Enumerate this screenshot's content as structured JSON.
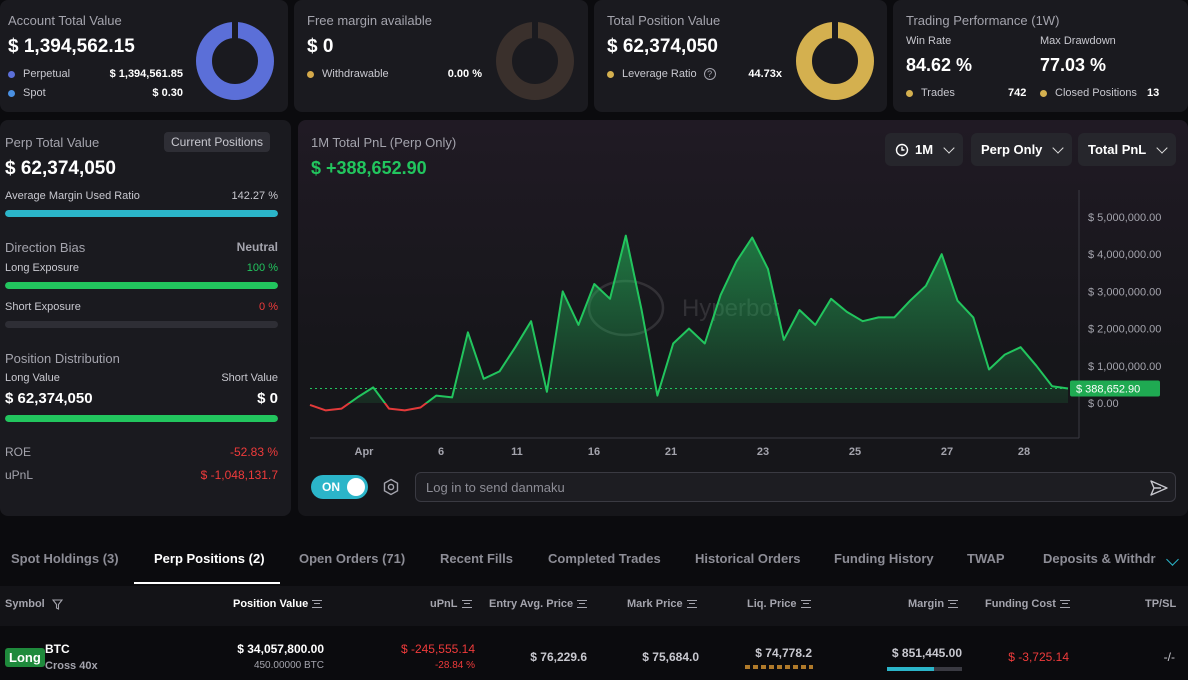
{
  "account": {
    "title": "Account Total Value",
    "value": "$ 1,394,562.15",
    "perpetual_label": "Perpetual",
    "perpetual_value": "$ 1,394,561.85",
    "spot_label": "Spot",
    "spot_value": "$ 0.30",
    "perpetual_color": "#5b6fd8",
    "spot_color": "#4a90e2"
  },
  "free_margin": {
    "title": "Free margin available",
    "value": "$ 0",
    "withdrawable_label": "Withdrawable",
    "withdrawable_value": "0.00 %",
    "accent": "#d4a94a"
  },
  "position": {
    "title": "Total Position Value",
    "value": "$ 62,374,050",
    "leverage_label": "Leverage Ratio",
    "leverage_value": "44.73x",
    "accent": "#d4b04f"
  },
  "performance": {
    "title": "Trading Performance (1W)",
    "win_rate_label": "Win Rate",
    "win_rate": "84.62 %",
    "max_drawdown_label": "Max Drawdown",
    "max_drawdown": "77.03 %",
    "trades_label": "Trades",
    "trades": "742",
    "closed_label": "Closed Positions",
    "closed": "13"
  },
  "perp": {
    "title": "Perp Total Value",
    "current_positions_btn": "Current Positions",
    "value": "$ 62,374,050",
    "margin_ratio_label": "Average Margin Used Ratio",
    "margin_ratio": "142.27 %",
    "margin_ratio_fill": 1.0,
    "direction_label": "Direction Bias",
    "direction_value": "Neutral",
    "long_exposure_label": "Long Exposure",
    "long_exposure": "100 %",
    "long_exposure_fill": 1.0,
    "short_exposure_label": "Short Exposure",
    "short_exposure": "0 %",
    "short_exposure_fill": 0.0,
    "distribution_label": "Position Distribution",
    "long_value_label": "Long Value",
    "short_value_label": "Short Value",
    "long_value": "$ 62,374,050",
    "short_value": "$ 0",
    "distribution_fill": 1.0,
    "roe_label": "ROE",
    "roe": "-52.83 %",
    "upnl_label": "uPnL",
    "upnl": "$ -1,048,131.7"
  },
  "pnl_chart": {
    "title": "1M Total PnL (Perp Only)",
    "value": "$ +388,652.90",
    "range_btn": "1M",
    "scope_btn": "Perp Only",
    "metric_btn": "Total PnL",
    "watermark": "Hyperbot",
    "toggle_label": "ON",
    "danmaku_placeholder": "Log in to send danmaku"
  },
  "chart_data": {
    "type": "area",
    "title": "1M Total PnL (Perp Only)",
    "x_tick_labels": [
      "Apr",
      "6",
      "11",
      "16",
      "21",
      "23",
      "25",
      "27",
      "28"
    ],
    "y_tick_labels": [
      "$ 5,000,000.00",
      "$ 4,000,000.00",
      "$ 3,000,000.00",
      "$ 2,000,000.00",
      "$ 1,000,000.00",
      "$ 0.00"
    ],
    "ylim": [
      -1000000,
      5500000
    ],
    "current_value_label": "$ 388,652.90",
    "current_value": 388652.9,
    "series": [
      {
        "values": [
          -50000,
          -200000,
          -150000,
          150000,
          420000,
          -150000,
          -200000,
          -120000,
          200000,
          150000,
          1900000,
          650000,
          850000,
          1500000,
          2200000,
          300000,
          3000000,
          2100000,
          3200000,
          2800000,
          4500000,
          2500000,
          200000,
          1600000,
          2000000,
          1600000,
          2900000,
          3800000,
          4450000,
          3600000,
          1700000,
          2500000,
          2100000,
          2800000,
          2450000,
          2200000,
          2300000,
          2300000,
          2750000,
          3150000,
          4000000,
          2750000,
          2300000,
          900000,
          1300000,
          1500000,
          1000000,
          450000,
          389000
        ]
      }
    ],
    "negative_color": "#e23a3a",
    "positive_color": "#22c55e"
  },
  "tabs": [
    "Spot Holdings (3)",
    "Perp Positions (2)",
    "Open Orders (71)",
    "Recent Fills",
    "Completed Trades",
    "Historical Orders",
    "Funding History",
    "TWAP",
    "Deposits & Withdra"
  ],
  "table": {
    "headers": {
      "symbol": "Symbol",
      "position_value": "Position Value",
      "upnl": "uPnL",
      "entry": "Entry Avg. Price",
      "mark": "Mark Price",
      "liq": "Liq. Price",
      "margin": "Margin",
      "funding": "Funding Cost",
      "tpsl": "TP/SL"
    },
    "row": {
      "side": "Long",
      "symbol": "BTC",
      "leverage": "Cross 40x",
      "position_value": "$ 34,057,800.00",
      "size": "450.00000 BTC",
      "upnl": "$ -245,555.14",
      "upnl_pct": "-28.84 %",
      "entry": "$ 76,229.6",
      "mark": "$ 75,684.0",
      "liq": "$ 74,778.2",
      "margin": "$ 851,445.00",
      "funding": "$ -3,725.14",
      "tpsl": "-/-"
    }
  }
}
